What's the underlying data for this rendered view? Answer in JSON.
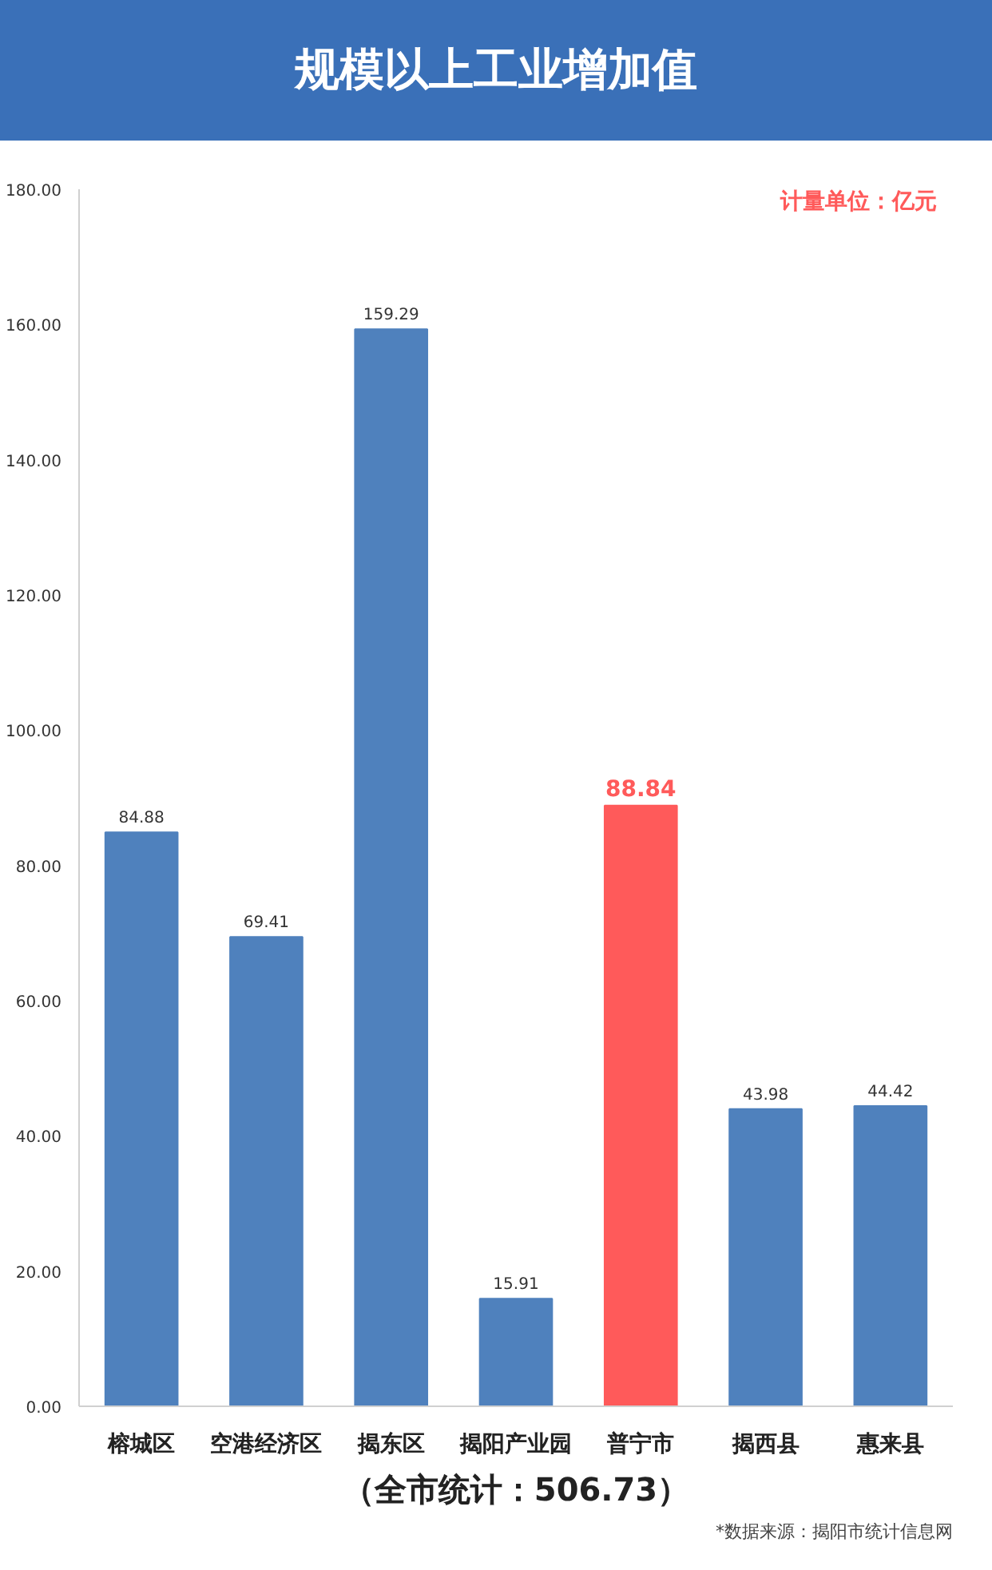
{
  "chart_data": {
    "type": "bar",
    "title": "规模以上工业增加值",
    "categories": [
      "榕城区",
      "空港经济区",
      "揭东区",
      "揭阳产业园",
      "普宁市",
      "揭西县",
      "惠来县"
    ],
    "values": [
      84.88,
      69.41,
      159.29,
      15.91,
      88.84,
      43.98,
      44.42
    ],
    "color": "#4f81bd",
    "colors": [
      "#4f81bd",
      "#4f81bd",
      "#4f81bd",
      "#4f81bd",
      "#ff5a5a",
      "#4f81bd",
      "#4f81bd"
    ],
    "data_labels": true,
    "grid": false,
    "ylim": [
      0,
      180
    ],
    "yticks": [
      {
        "value": 0,
        "label": "0.00"
      },
      {
        "value": 20,
        "label": "20.00"
      },
      {
        "value": 40,
        "label": "40.00"
      },
      {
        "value": 60,
        "label": "60.00"
      },
      {
        "value": 80,
        "label": "80.00"
      },
      {
        "value": 100,
        "label": "100.00"
      },
      {
        "value": 120,
        "label": "120.00"
      },
      {
        "value": 140,
        "label": "140.00"
      },
      {
        "value": 160,
        "label": "160.00"
      },
      {
        "value": 180,
        "label": "180.00"
      }
    ],
    "annotations": [
      "计量单位：亿元",
      "（全市统计：506.73）",
      "*数据来源：揭阳市统计信息网"
    ]
  }
}
